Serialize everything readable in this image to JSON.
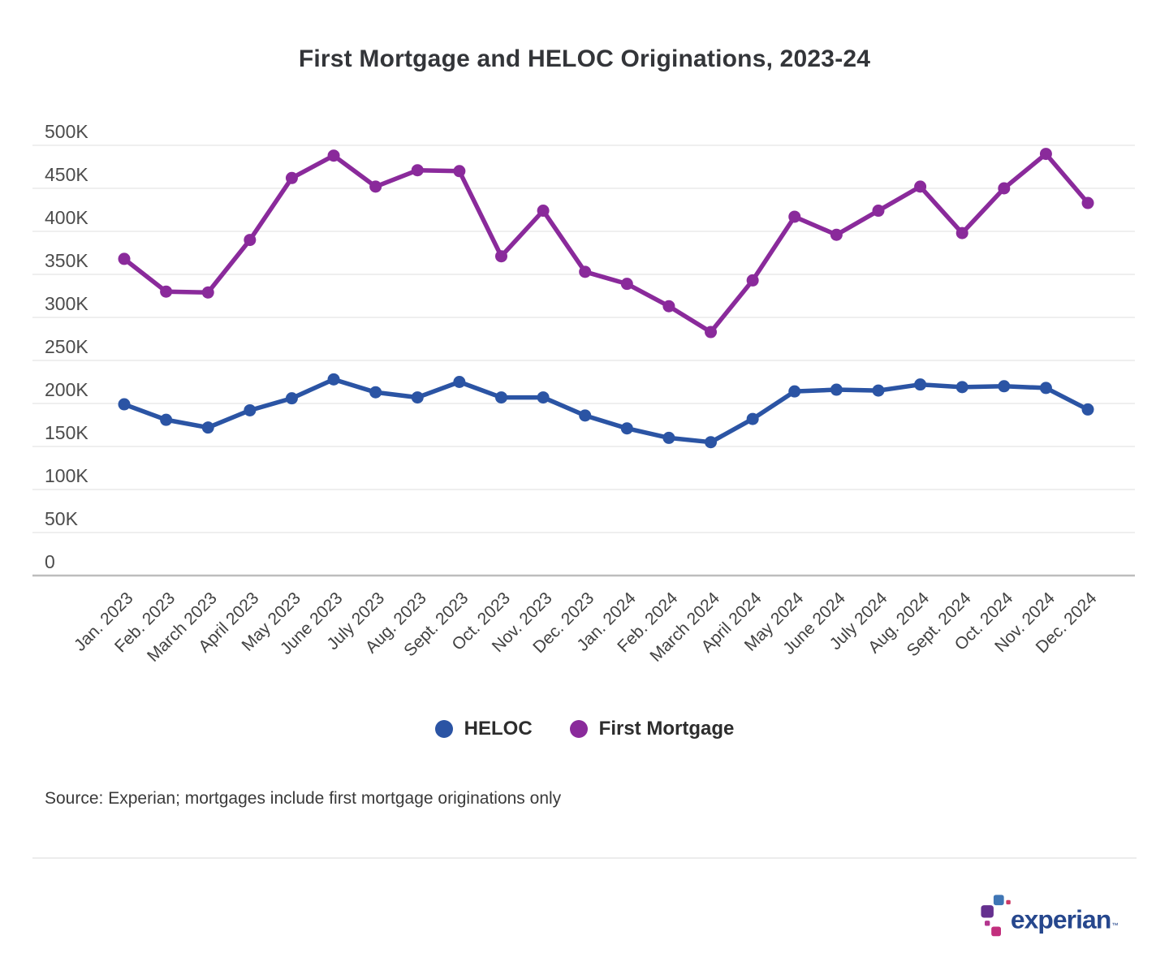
{
  "title": "First Mortgage and HELOC Originations, 2023-24",
  "source_note": "Source: Experian; mortgages include first mortgage originations only",
  "logo": {
    "text": "experian",
    "tm": "™"
  },
  "colors": {
    "heloc": "#2b54a4",
    "first_mortgage": "#8a2a9b",
    "grid": "#efefef",
    "axis": "#bdbdbd",
    "logo_blue": "#3f76b5",
    "logo_purple": "#65308f",
    "logo_magenta": "#c22f7d",
    "logo_crimson": "#cc3a66",
    "logo_text": "#26478d"
  },
  "legend": [
    {
      "label": "HELOC",
      "color": "#2b54a4"
    },
    {
      "label": "First Mortgage",
      "color": "#8a2a9b"
    }
  ],
  "chart_data": {
    "type": "line",
    "title": "First Mortgage and HELOC Originations, 2023-24",
    "xlabel": "",
    "ylabel": "",
    "values_unit": "originations, K = thousands (values estimated from chart)",
    "ylim": [
      0,
      500
    ],
    "grid": true,
    "legend_position": "bottom",
    "x_tick_rotation": -45,
    "x": [
      "Jan. 2023",
      "Feb. 2023",
      "March 2023",
      "April 2023",
      "May 2023",
      "June 2023",
      "July 2023",
      "Aug. 2023",
      "Sept. 2023",
      "Oct. 2023",
      "Nov. 2023",
      "Dec. 2023",
      "Jan. 2024",
      "Feb. 2024",
      "March 2024",
      "April 2024",
      "May 2024",
      "June 2024",
      "July 2024",
      "Aug. 2024",
      "Sept. 2024",
      "Oct. 2024",
      "Nov. 2024",
      "Dec. 2024"
    ],
    "y_ticks": [
      {
        "value": 0,
        "label": "0"
      },
      {
        "value": 50,
        "label": "50K"
      },
      {
        "value": 100,
        "label": "100K"
      },
      {
        "value": 150,
        "label": "150K"
      },
      {
        "value": 200,
        "label": "200K"
      },
      {
        "value": 250,
        "label": "250K"
      },
      {
        "value": 300,
        "label": "300K"
      },
      {
        "value": 350,
        "label": "350K"
      },
      {
        "value": 400,
        "label": "400K"
      },
      {
        "value": 450,
        "label": "450K"
      },
      {
        "value": 500,
        "label": "500K"
      }
    ],
    "series": [
      {
        "name": "First Mortgage",
        "color": "#8a2a9b",
        "values": [
          368,
          330,
          329,
          390,
          462,
          488,
          452,
          471,
          470,
          371,
          424,
          353,
          339,
          313,
          283,
          343,
          417,
          396,
          424,
          452,
          398,
          450,
          490,
          433
        ]
      },
      {
        "name": "HELOC",
        "color": "#2b54a4",
        "values": [
          199,
          181,
          172,
          192,
          206,
          228,
          213,
          207,
          225,
          207,
          207,
          186,
          171,
          160,
          155,
          182,
          214,
          216,
          215,
          222,
          219,
          220,
          218,
          193
        ]
      }
    ]
  }
}
